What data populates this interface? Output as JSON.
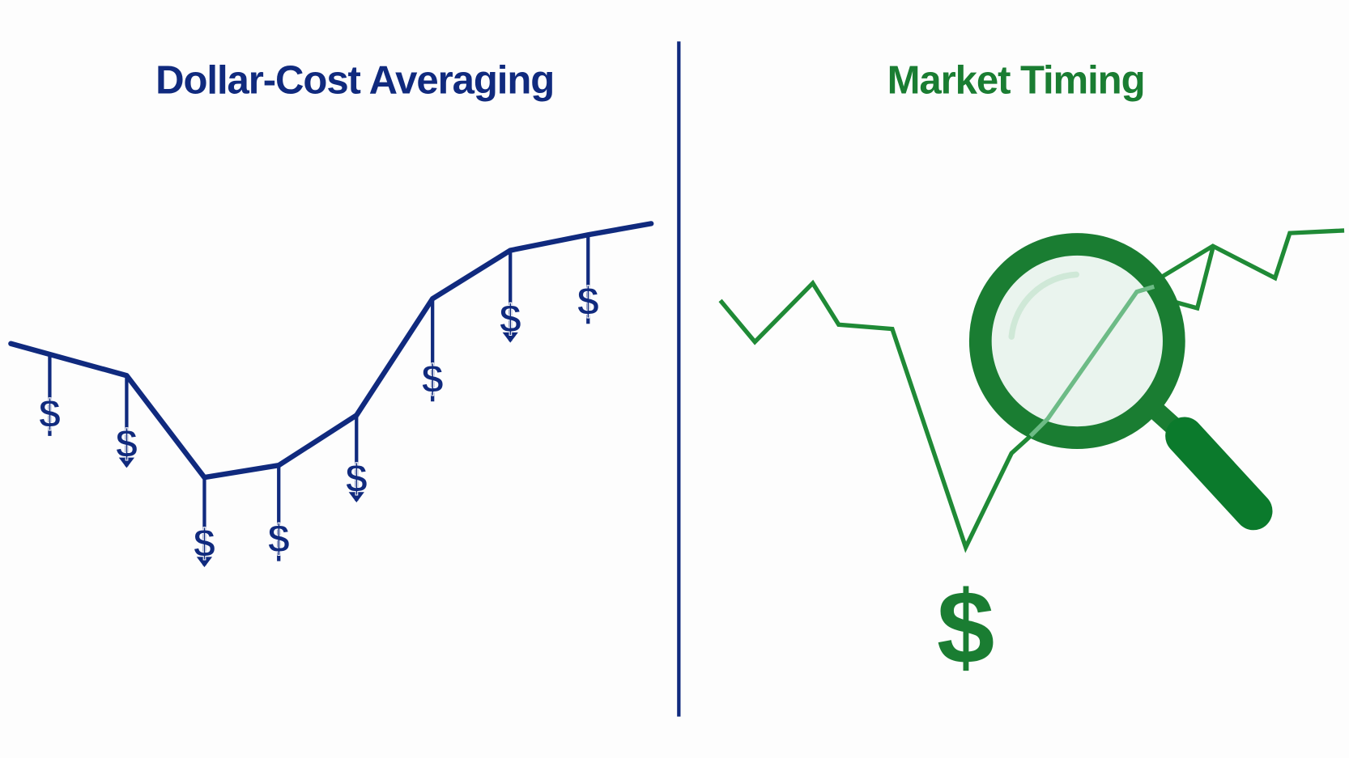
{
  "left_panel": {
    "title": "Dollar-Cost Averaging",
    "color": "#102a7e",
    "dollar_symbol": "$",
    "icon": "price-line-with-regular-dollar-purchases"
  },
  "right_panel": {
    "title": "Market Timing",
    "color": "#1a7d32",
    "dollar_symbol": "$",
    "icon": "magnifying-glass-over-price-line"
  },
  "divider_color": "#102a7e"
}
